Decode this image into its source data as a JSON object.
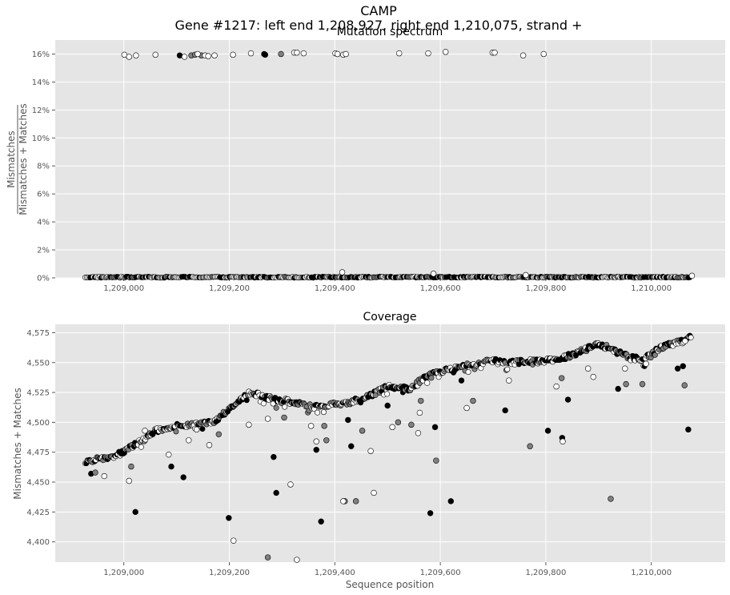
{
  "figure": {
    "suptitle_line1": "CAMP",
    "suptitle_line2": "Gene #1217: left end 1,208,927, right end 1,210,075, strand +",
    "xlabel": "Sequence position",
    "colors": {
      "background": "#E5E5E5",
      "grid": "#FFFFFF",
      "black": "#000000",
      "gray": "#808080",
      "white": "#FFFFFF"
    }
  },
  "chart_data": [
    {
      "type": "scatter",
      "title": "Mutation spectrum",
      "ylabel_numerator": "Mismatches",
      "ylabel_denominator": "Mismatches + Matches",
      "xlim": [
        1208870,
        1210140
      ],
      "ylim": [
        0,
        17
      ],
      "x_ticks": [
        1209000,
        1209200,
        1209400,
        1209600,
        1209800,
        1210000
      ],
      "x_tick_labels": [
        "1,209,000",
        "1,209,200",
        "1,209,400",
        "1,209,600",
        "1,209,800",
        "1,210,000"
      ],
      "y_ticks": [
        0,
        2,
        4,
        6,
        8,
        10,
        12,
        14,
        16
      ],
      "y_tick_labels": [
        "0%",
        "2%",
        "4%",
        "6%",
        "8%",
        "10%",
        "12%",
        "14%",
        "16%"
      ],
      "grid": true,
      "baseline": {
        "x_range": [
          1208927,
          1210075
        ],
        "y": 0.05
      },
      "series": [
        {
          "color": "black",
          "points": [
            [
              1209106,
              15.9
            ],
            [
              1209266,
              16.0
            ],
            [
              1209268,
              15.95
            ]
          ]
        },
        {
          "color": "gray",
          "points": [
            [
              1209128,
              15.9
            ],
            [
              1209135,
              15.95
            ],
            [
              1209147,
              15.9
            ],
            [
              1209298,
              16.0
            ]
          ]
        },
        {
          "color": "white",
          "points": [
            [
              1209001,
              15.95
            ],
            [
              1209010,
              15.8
            ],
            [
              1209023,
              15.9
            ],
            [
              1209060,
              15.95
            ],
            [
              1209115,
              15.8
            ],
            [
              1209140,
              16.0
            ],
            [
              1209154,
              15.9
            ],
            [
              1209160,
              15.85
            ],
            [
              1209172,
              15.9
            ],
            [
              1209207,
              15.95
            ],
            [
              1209241,
              16.05
            ],
            [
              1209323,
              16.1
            ],
            [
              1209328,
              16.1
            ],
            [
              1209341,
              16.05
            ],
            [
              1209401,
              16.05
            ],
            [
              1209405,
              16.0
            ],
            [
              1209416,
              15.95
            ],
            [
              1209421,
              16.0
            ],
            [
              1209522,
              16.05
            ],
            [
              1209577,
              16.05
            ],
            [
              1209610,
              16.15
            ],
            [
              1209699,
              16.1
            ],
            [
              1209703,
              16.1
            ],
            [
              1209757,
              15.9
            ],
            [
              1209796,
              16.0
            ],
            [
              1209414,
              0.4
            ],
            [
              1209587,
              0.3
            ],
            [
              1209762,
              0.2
            ],
            [
              1210077,
              0.15
            ]
          ]
        }
      ]
    },
    {
      "type": "scatter",
      "title": "Coverage",
      "ylabel": "Mismatches + Matches",
      "xlim": [
        1208870,
        1210140
      ],
      "ylim": [
        4383,
        4582
      ],
      "x_ticks": [
        1209000,
        1209200,
        1209400,
        1209600,
        1209800,
        1210000
      ],
      "x_tick_labels": [
        "1,209,000",
        "1,209,200",
        "1,209,400",
        "1,209,600",
        "1,209,800",
        "1,210,000"
      ],
      "y_ticks": [
        4400,
        4425,
        4450,
        4475,
        4500,
        4525,
        4550,
        4575
      ],
      "y_tick_labels": [
        "4,400",
        "4,425",
        "4,450",
        "4,475",
        "4,500",
        "4,525",
        "4,550",
        "4,575"
      ],
      "grid": true,
      "trend": [
        [
          1208927,
          4467
        ],
        [
          1208980,
          4472
        ],
        [
          1209000,
          4475
        ],
        [
          1209040,
          4487
        ],
        [
          1209060,
          4493
        ],
        [
          1209100,
          4497
        ],
        [
          1209140,
          4498
        ],
        [
          1209170,
          4500
        ],
        [
          1209200,
          4512
        ],
        [
          1209240,
          4525
        ],
        [
          1209280,
          4520
        ],
        [
          1209320,
          4517
        ],
        [
          1209360,
          4513
        ],
        [
          1209400,
          4515
        ],
        [
          1209430,
          4517
        ],
        [
          1209470,
          4523
        ],
        [
          1209500,
          4530
        ],
        [
          1209540,
          4528
        ],
        [
          1209580,
          4540
        ],
        [
          1209620,
          4545
        ],
        [
          1209660,
          4548
        ],
        [
          1209700,
          4552
        ],
        [
          1209740,
          4550
        ],
        [
          1209780,
          4552
        ],
        [
          1209820,
          4552
        ],
        [
          1209860,
          4558
        ],
        [
          1209900,
          4566
        ],
        [
          1209940,
          4558
        ],
        [
          1209980,
          4552
        ],
        [
          1210020,
          4563
        ],
        [
          1210060,
          4568
        ],
        [
          1210075,
          4573
        ]
      ],
      "series": [
        {
          "color": "black",
          "points": [
            [
              1209022,
              4425
            ],
            [
              1209199,
              4420
            ],
            [
              1209284,
              4471
            ],
            [
              1209289,
              4441
            ],
            [
              1209374,
              4417
            ],
            [
              1209431,
              4480
            ],
            [
              1209581,
              4424
            ],
            [
              1209620,
              4434
            ],
            [
              1209723,
              4510
            ],
            [
              1209804,
              4493
            ],
            [
              1209842,
              4519
            ],
            [
              1209831,
              4487
            ],
            [
              1209937,
              4528
            ],
            [
              1210070,
              4494
            ],
            [
              1209590,
              4496
            ],
            [
              1209365,
              4477
            ],
            [
              1209425,
              4502
            ],
            [
              1208938,
              4457
            ],
            [
              1209113,
              4454
            ],
            [
              1209090,
              4463
            ],
            [
              1210050,
              4545
            ],
            [
              1210060,
              4547
            ],
            [
              1209500,
              4514
            ],
            [
              1209640,
              4535
            ]
          ]
        },
        {
          "color": "gray",
          "points": [
            [
              1209273,
              4387
            ],
            [
              1209419,
              4434
            ],
            [
              1209440,
              4434
            ],
            [
              1209592,
              4468
            ],
            [
              1209770,
              4480
            ],
            [
              1209923,
              4436
            ],
            [
              1209384,
              4485
            ],
            [
              1209380,
              4497
            ],
            [
              1209452,
              4493
            ],
            [
              1209304,
              4504
            ],
            [
              1209520,
              4500
            ],
            [
              1209563,
              4518
            ],
            [
              1210063,
              4531
            ],
            [
              1209662,
              4518
            ],
            [
              1209983,
              4532
            ],
            [
              1209952,
              4532
            ],
            [
              1209830,
              4537
            ],
            [
              1209180,
              4490
            ],
            [
              1208946,
              4458
            ],
            [
              1209014,
              4463
            ],
            [
              1209545,
              4498
            ]
          ]
        },
        {
          "color": "white",
          "points": [
            [
              1209010,
              4451
            ],
            [
              1209208,
              4401
            ],
            [
              1209316,
              4448
            ],
            [
              1209328,
              4385
            ],
            [
              1209416,
              4434
            ],
            [
              1209468,
              4476
            ],
            [
              1209474,
              4441
            ],
            [
              1209237,
              4498
            ],
            [
              1209273,
              4503
            ],
            [
              1209355,
              4497
            ],
            [
              1209365,
              4484
            ],
            [
              1209509,
              4496
            ],
            [
              1209558,
              4491
            ],
            [
              1209561,
              4508
            ],
            [
              1209575,
              4533
            ],
            [
              1209650,
              4512
            ],
            [
              1209832,
              4484
            ],
            [
              1209820,
              4530
            ],
            [
              1209880,
              4545
            ],
            [
              1209890,
              4538
            ],
            [
              1209990,
              4549
            ],
            [
              1209950,
              4545
            ],
            [
              1209162,
              4481
            ],
            [
              1209138,
              4494
            ],
            [
              1208963,
              4455
            ],
            [
              1209085,
              4473
            ],
            [
              1209040,
              4493
            ],
            [
              1209123,
              4485
            ],
            [
              1209730,
              4535
            ],
            [
              1210064,
              4568
            ]
          ]
        }
      ]
    }
  ]
}
